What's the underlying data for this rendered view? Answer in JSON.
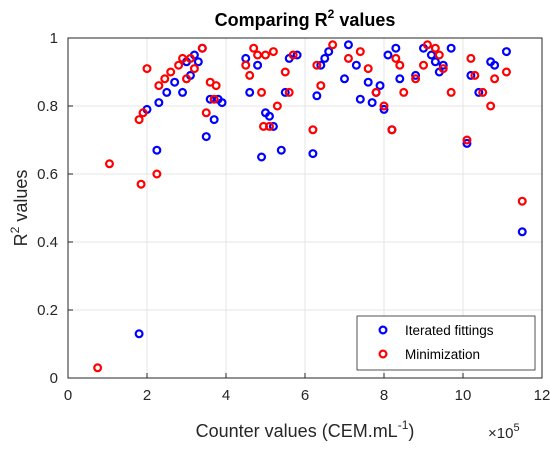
{
  "chart_data": {
    "type": "scatter",
    "title": {
      "main": "Comparing R",
      "sup": "2",
      "rest": " values"
    },
    "xlabel": {
      "main": "Counter values (CEM.mL",
      "sup": "-1",
      "rest": ")"
    },
    "ylabel": {
      "main": "R",
      "sup": "2",
      "rest": " values"
    },
    "x_exponent": {
      "base": "×10",
      "sup": "5"
    },
    "xlim": [
      0,
      12
    ],
    "ylim": [
      0,
      1
    ],
    "xticks": [
      "0",
      "2",
      "4",
      "6",
      "8",
      "10",
      "12"
    ],
    "yticks": [
      "0",
      "0.2",
      "0.4",
      "0.6",
      "0.8",
      "1"
    ],
    "grid": true,
    "legend_position": "bottom-right",
    "series": [
      {
        "name": "Iterated fittings",
        "color": "#0000ff",
        "points": [
          [
            1.8,
            0.13
          ],
          [
            2.0,
            0.79
          ],
          [
            2.25,
            0.67
          ],
          [
            2.3,
            0.81
          ],
          [
            2.5,
            0.84
          ],
          [
            2.7,
            0.87
          ],
          [
            2.9,
            0.84
          ],
          [
            3.0,
            0.93
          ],
          [
            3.1,
            0.89
          ],
          [
            3.2,
            0.95
          ],
          [
            3.3,
            0.93
          ],
          [
            3.4,
            0.97
          ],
          [
            3.5,
            0.71
          ],
          [
            3.6,
            0.82
          ],
          [
            3.7,
            0.76
          ],
          [
            3.8,
            0.82
          ],
          [
            3.9,
            0.81
          ],
          [
            4.5,
            0.94
          ],
          [
            4.6,
            0.84
          ],
          [
            4.8,
            0.92
          ],
          [
            4.9,
            0.65
          ],
          [
            5.0,
            0.78
          ],
          [
            5.1,
            0.77
          ],
          [
            5.2,
            0.74
          ],
          [
            5.4,
            0.67
          ],
          [
            5.5,
            0.84
          ],
          [
            5.6,
            0.94
          ],
          [
            5.8,
            0.95
          ],
          [
            6.2,
            0.66
          ],
          [
            6.3,
            0.83
          ],
          [
            6.4,
            0.92
          ],
          [
            6.5,
            0.94
          ],
          [
            6.6,
            0.96
          ],
          [
            7.0,
            0.88
          ],
          [
            7.1,
            0.98
          ],
          [
            7.3,
            0.92
          ],
          [
            7.4,
            0.82
          ],
          [
            7.6,
            0.87
          ],
          [
            7.7,
            0.81
          ],
          [
            7.8,
            0.84
          ],
          [
            7.9,
            0.86
          ],
          [
            8.0,
            0.79
          ],
          [
            8.1,
            0.95
          ],
          [
            8.2,
            0.73
          ],
          [
            8.3,
            0.97
          ],
          [
            8.4,
            0.88
          ],
          [
            8.8,
            0.89
          ],
          [
            9.0,
            0.97
          ],
          [
            9.2,
            0.95
          ],
          [
            9.3,
            0.93
          ],
          [
            9.4,
            0.9
          ],
          [
            9.5,
            0.92
          ],
          [
            9.7,
            0.97
          ],
          [
            10.1,
            0.69
          ],
          [
            10.2,
            0.89
          ],
          [
            10.4,
            0.84
          ],
          [
            10.7,
            0.93
          ],
          [
            10.8,
            0.92
          ],
          [
            11.1,
            0.96
          ],
          [
            11.5,
            0.43
          ]
        ]
      },
      {
        "name": "Minimization",
        "color": "#ff0000",
        "points": [
          [
            0.75,
            0.03
          ],
          [
            1.05,
            0.63
          ],
          [
            1.8,
            0.76
          ],
          [
            1.85,
            0.57
          ],
          [
            1.9,
            0.78
          ],
          [
            2.0,
            0.91
          ],
          [
            2.25,
            0.6
          ],
          [
            2.3,
            0.86
          ],
          [
            2.45,
            0.88
          ],
          [
            2.6,
            0.9
          ],
          [
            2.8,
            0.92
          ],
          [
            2.9,
            0.94
          ],
          [
            3.0,
            0.88
          ],
          [
            3.1,
            0.94
          ],
          [
            3.2,
            0.91
          ],
          [
            3.4,
            0.97
          ],
          [
            3.5,
            0.78
          ],
          [
            3.6,
            0.87
          ],
          [
            3.7,
            0.82
          ],
          [
            3.75,
            0.86
          ],
          [
            4.5,
            0.92
          ],
          [
            4.6,
            0.89
          ],
          [
            4.7,
            0.97
          ],
          [
            4.8,
            0.95
          ],
          [
            4.9,
            0.84
          ],
          [
            4.95,
            0.74
          ],
          [
            5.0,
            0.95
          ],
          [
            5.1,
            0.74
          ],
          [
            5.2,
            0.96
          ],
          [
            5.3,
            0.8
          ],
          [
            5.5,
            0.9
          ],
          [
            5.6,
            0.84
          ],
          [
            5.7,
            0.95
          ],
          [
            6.2,
            0.73
          ],
          [
            6.3,
            0.92
          ],
          [
            6.4,
            0.86
          ],
          [
            6.7,
            0.98
          ],
          [
            7.1,
            0.94
          ],
          [
            7.4,
            0.96
          ],
          [
            7.6,
            0.91
          ],
          [
            7.8,
            0.84
          ],
          [
            8.0,
            0.8
          ],
          [
            8.2,
            0.73
          ],
          [
            8.3,
            0.94
          ],
          [
            8.4,
            0.92
          ],
          [
            8.5,
            0.84
          ],
          [
            8.8,
            0.88
          ],
          [
            9.0,
            0.92
          ],
          [
            9.1,
            0.98
          ],
          [
            9.3,
            0.97
          ],
          [
            9.4,
            0.95
          ],
          [
            9.5,
            0.91
          ],
          [
            9.7,
            0.84
          ],
          [
            10.1,
            0.7
          ],
          [
            10.2,
            0.94
          ],
          [
            10.3,
            0.89
          ],
          [
            10.5,
            0.84
          ],
          [
            10.7,
            0.8
          ],
          [
            10.8,
            0.88
          ],
          [
            11.1,
            0.9
          ],
          [
            11.5,
            0.52
          ]
        ]
      }
    ]
  }
}
